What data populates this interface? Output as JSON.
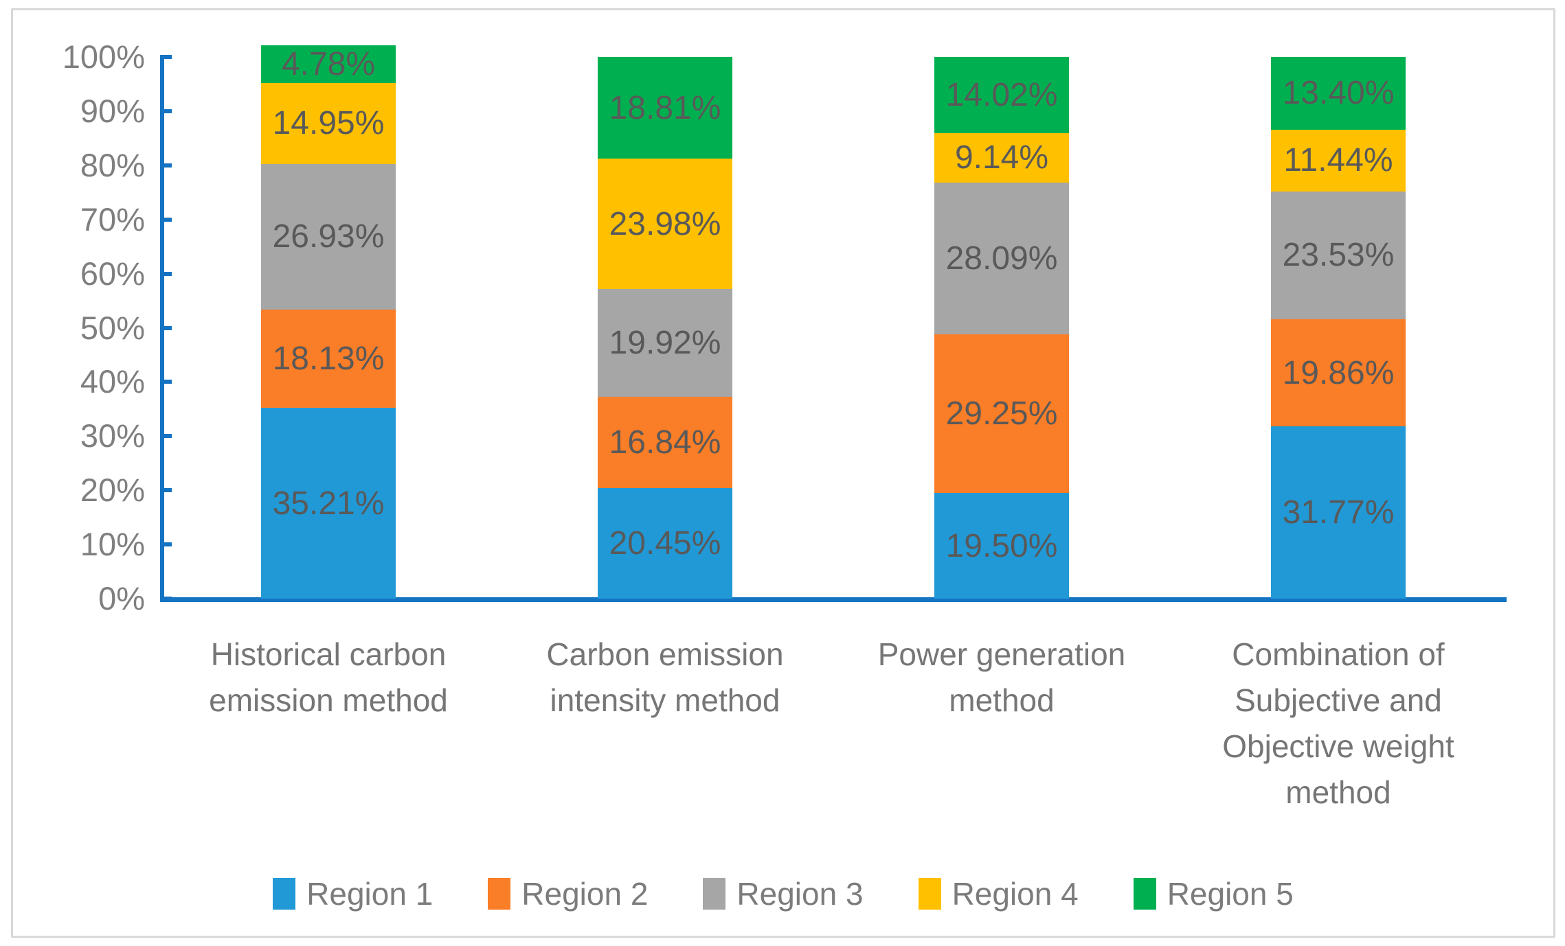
{
  "figure": {
    "border_color": "#D8D8D8",
    "background": "#FFFFFF"
  },
  "chart_data": {
    "type": "bar",
    "subtype": "stacked-100-percent",
    "orientation": "vertical",
    "title": "",
    "xlabel": "",
    "ylabel": "",
    "ylim": [
      0,
      100
    ],
    "grid": false,
    "legend_position": "bottom",
    "axis_color": "#1473C2",
    "tick_label_color": "#7F7F7F",
    "data_label_color": "#595959",
    "category_label_color": "#767676",
    "legend_text_color": "#7C7C7C",
    "y_ticks": [
      "0%",
      "10%",
      "20%",
      "30%",
      "40%",
      "50%",
      "60%",
      "70%",
      "80%",
      "90%",
      "100%"
    ],
    "categories": [
      "Historical carbon emission method",
      "Carbon emission intensity method",
      "Power generation method",
      "Combination of Subjective and Objective weight method"
    ],
    "category_lines": [
      [
        "Historical carbon",
        "emission method"
      ],
      [
        "Carbon emission",
        "intensity method"
      ],
      [
        "Power generation",
        "method"
      ],
      [
        "Combination of",
        "Subjective and",
        "Objective weight",
        "method"
      ]
    ],
    "series": [
      {
        "name": "Region 1",
        "color": "#2199D6",
        "values": [
          35.21,
          20.45,
          19.5,
          31.77
        ]
      },
      {
        "name": "Region 2",
        "color": "#FA7D27",
        "values": [
          18.13,
          16.84,
          29.25,
          19.86
        ]
      },
      {
        "name": "Region 3",
        "color": "#A6A6A6",
        "values": [
          26.93,
          19.92,
          28.09,
          23.53
        ]
      },
      {
        "name": "Region 4",
        "color": "#FFC000",
        "values": [
          14.95,
          23.98,
          9.14,
          11.44
        ]
      },
      {
        "name": "Region 5",
        "color": "#00B050",
        "values": [
          4.78,
          18.81,
          14.02,
          13.4
        ]
      }
    ],
    "data_label_format": "0.00%"
  }
}
